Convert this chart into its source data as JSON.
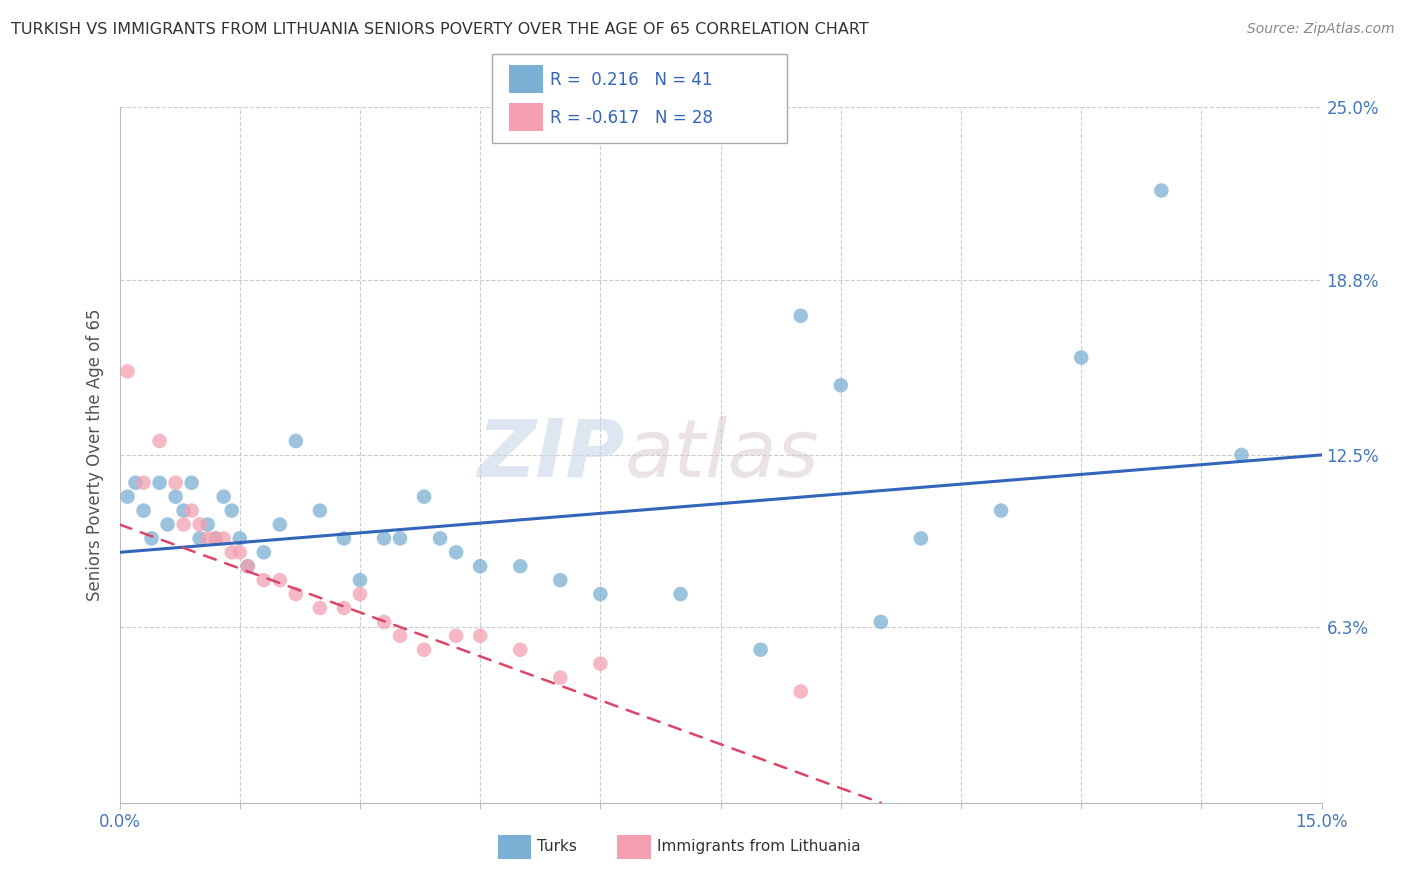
{
  "title": "TURKISH VS IMMIGRANTS FROM LITHUANIA SENIORS POVERTY OVER THE AGE OF 65 CORRELATION CHART",
  "source": "Source: ZipAtlas.com",
  "ylabel": "Seniors Poverty Over the Age of 65",
  "xlim": [
    0.0,
    0.15
  ],
  "ylim": [
    0.0,
    0.25
  ],
  "yticks": [
    0.0,
    0.063,
    0.125,
    0.188,
    0.25
  ],
  "ytick_labels": [
    "",
    "6.3%",
    "12.5%",
    "18.8%",
    "25.0%"
  ],
  "turks_color": "#7BAFD4",
  "lithuania_color": "#F4A0B0",
  "trend_turks_color": "#3366BB",
  "trend_lithuania_color": "#DD4466",
  "watermark_zip": "ZIP",
  "watermark_atlas": "atlas",
  "turks_x": [
    0.001,
    0.002,
    0.003,
    0.004,
    0.005,
    0.006,
    0.007,
    0.008,
    0.009,
    0.01,
    0.011,
    0.012,
    0.013,
    0.014,
    0.015,
    0.016,
    0.018,
    0.02,
    0.022,
    0.025,
    0.028,
    0.03,
    0.033,
    0.035,
    0.038,
    0.04,
    0.042,
    0.045,
    0.05,
    0.055,
    0.06,
    0.07,
    0.08,
    0.085,
    0.09,
    0.095,
    0.1,
    0.11,
    0.12,
    0.13,
    0.14
  ],
  "turks_y": [
    0.11,
    0.115,
    0.105,
    0.095,
    0.115,
    0.1,
    0.11,
    0.105,
    0.115,
    0.095,
    0.1,
    0.095,
    0.11,
    0.105,
    0.095,
    0.085,
    0.09,
    0.1,
    0.13,
    0.105,
    0.095,
    0.08,
    0.095,
    0.095,
    0.11,
    0.095,
    0.09,
    0.085,
    0.085,
    0.08,
    0.075,
    0.075,
    0.055,
    0.175,
    0.15,
    0.065,
    0.095,
    0.105,
    0.16,
    0.22,
    0.125
  ],
  "lithuania_x": [
    0.001,
    0.003,
    0.005,
    0.007,
    0.008,
    0.009,
    0.01,
    0.011,
    0.012,
    0.013,
    0.014,
    0.015,
    0.016,
    0.018,
    0.02,
    0.022,
    0.025,
    0.028,
    0.03,
    0.033,
    0.035,
    0.038,
    0.042,
    0.045,
    0.05,
    0.055,
    0.06,
    0.085
  ],
  "lithuania_y": [
    0.155,
    0.115,
    0.13,
    0.115,
    0.1,
    0.105,
    0.1,
    0.095,
    0.095,
    0.095,
    0.09,
    0.09,
    0.085,
    0.08,
    0.08,
    0.075,
    0.07,
    0.07,
    0.075,
    0.065,
    0.06,
    0.055,
    0.06,
    0.06,
    0.055,
    0.045,
    0.05,
    0.04
  ],
  "trend_turks_x0": 0.0,
  "trend_turks_x1": 0.15,
  "trend_turks_y0": 0.09,
  "trend_turks_y1": 0.125,
  "trend_lith_x0": 0.0,
  "trend_lith_x1": 0.095,
  "trend_lith_y0": 0.1,
  "trend_lith_y1": 0.0
}
